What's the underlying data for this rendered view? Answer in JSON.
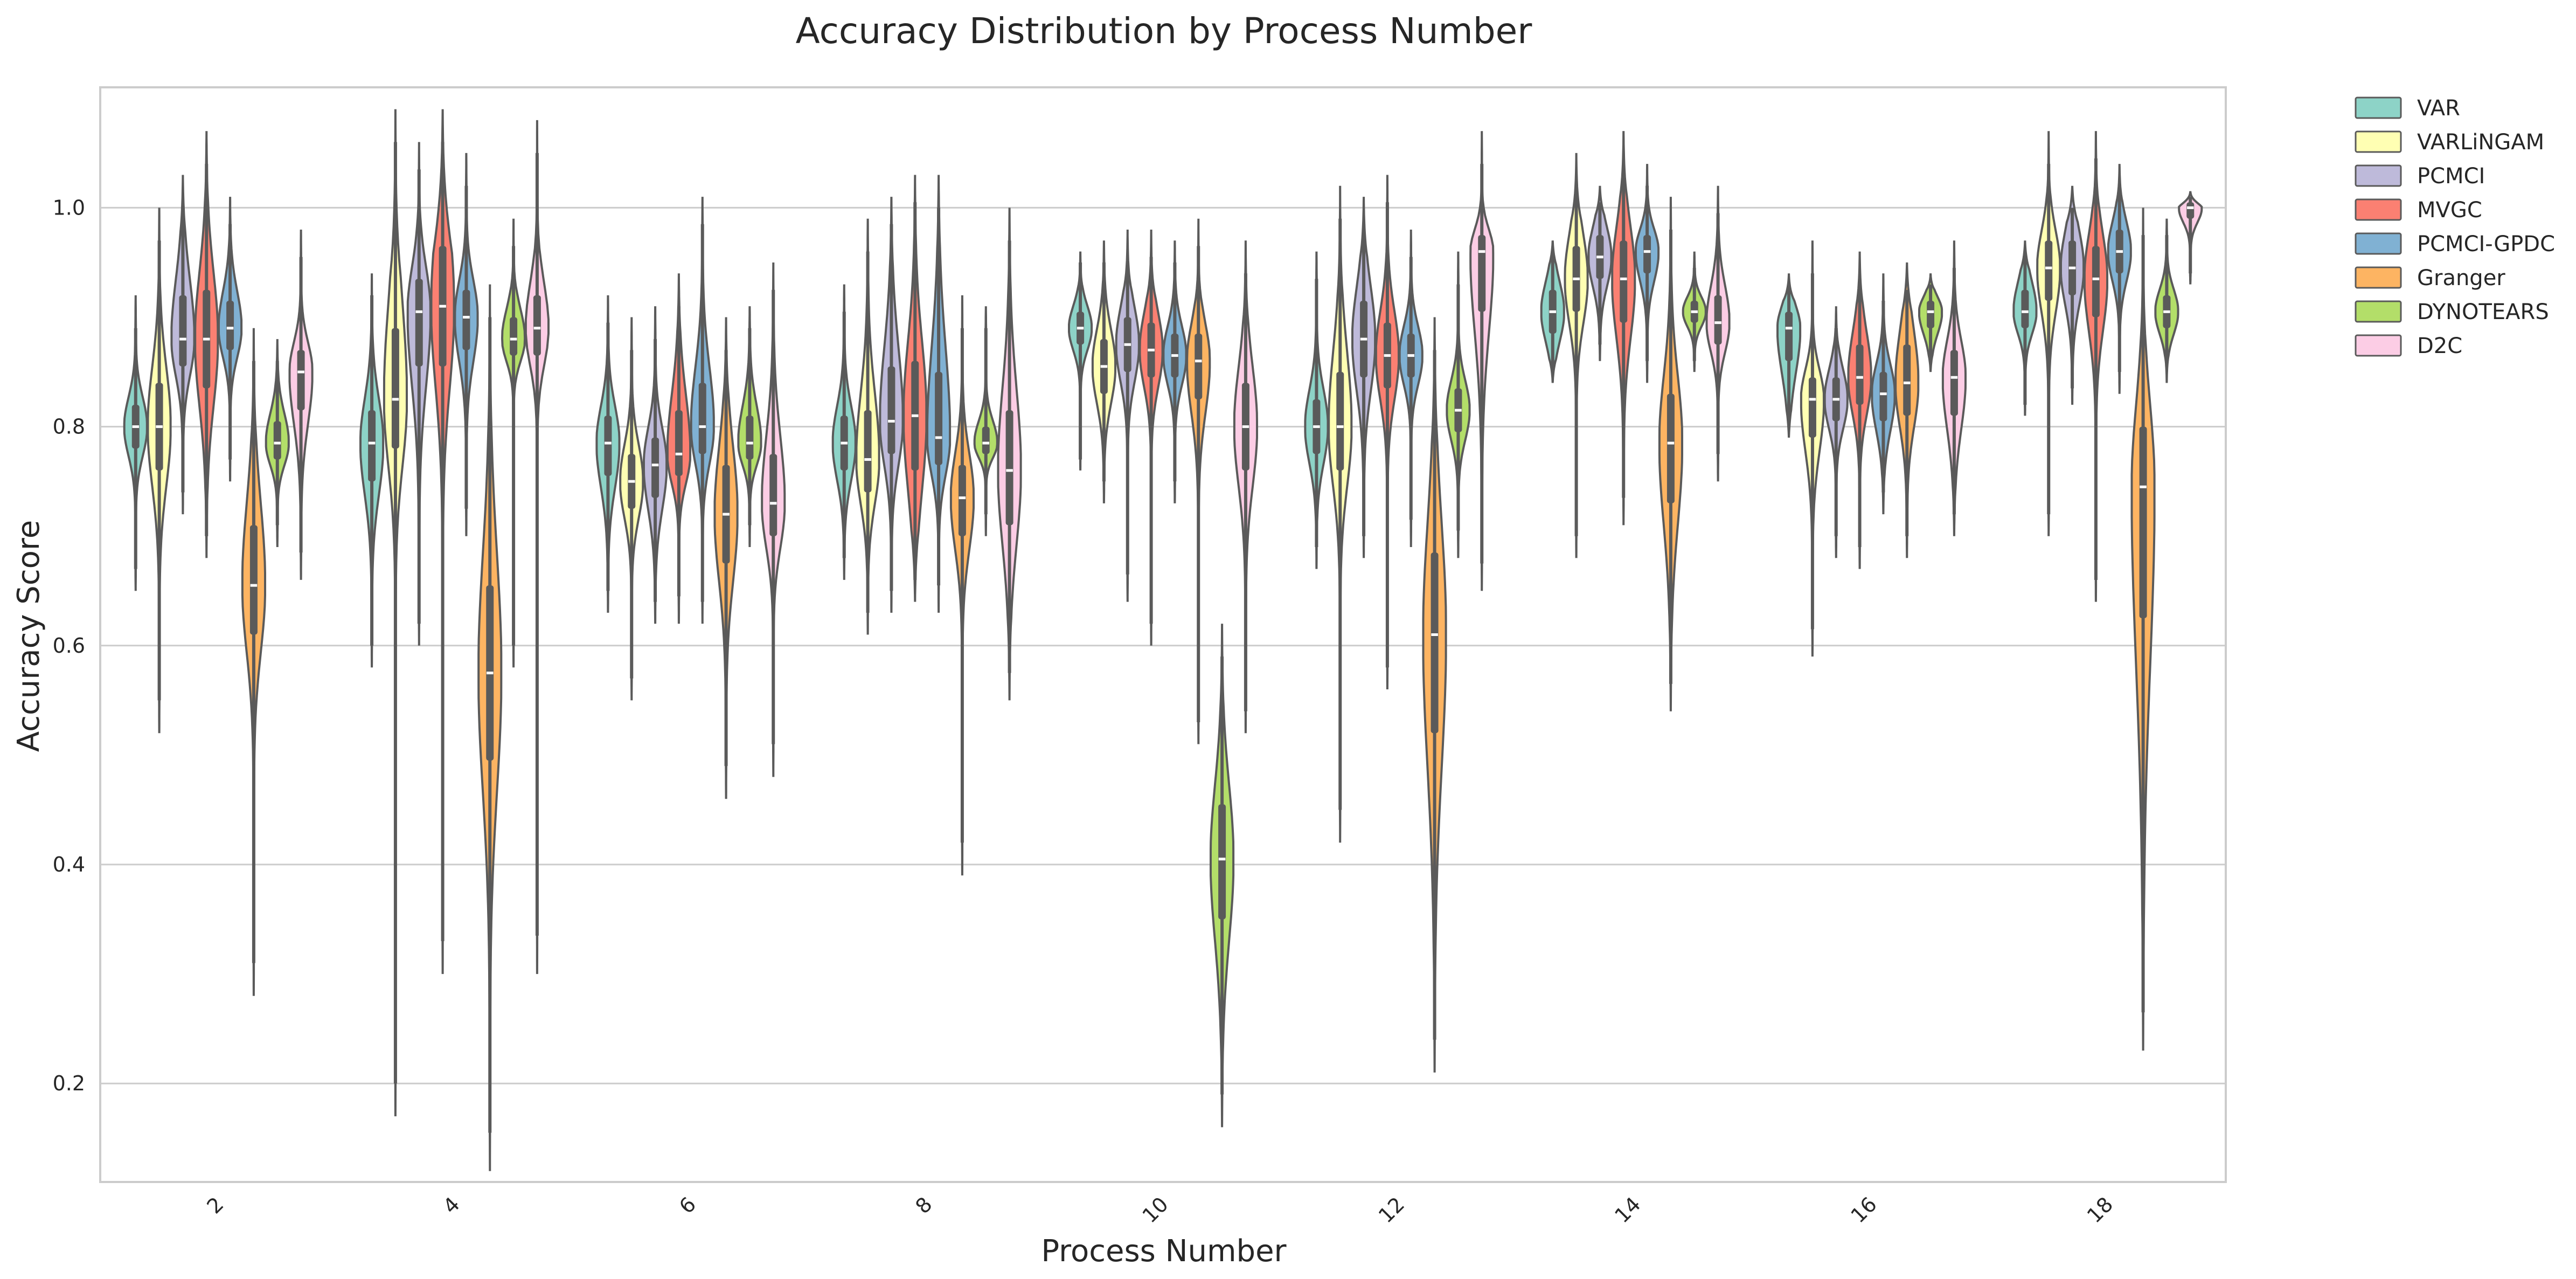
{
  "chart_data": {
    "type": "violin",
    "title": "Accuracy Distribution by Process Number",
    "xlabel": "Process Number",
    "ylabel": "Accuracy Score",
    "ylim": [
      0.11,
      1.11
    ],
    "yticks": [
      0.2,
      0.4,
      0.6,
      0.8,
      1.0
    ],
    "ytick_labels": [
      "0.2",
      "0.4",
      "0.6",
      "0.8",
      "1.0"
    ],
    "grid": "horizontal",
    "legend_position": "outside right, top",
    "categories": [
      "2",
      "4",
      "6",
      "8",
      "10",
      "12",
      "14",
      "16",
      "18"
    ],
    "series": [
      {
        "name": "VAR",
        "color": "#8dd3c7",
        "values": [
          {
            "min": 0.67,
            "q1": 0.78,
            "median": 0.8,
            "q3": 0.82,
            "max": 0.89,
            "lo": 0.65,
            "hi": 0.92
          },
          {
            "min": 0.6,
            "q1": 0.75,
            "median": 0.785,
            "q3": 0.815,
            "max": 0.92,
            "lo": 0.58,
            "hi": 0.94
          },
          {
            "min": 0.65,
            "q1": 0.755,
            "median": 0.785,
            "q3": 0.81,
            "max": 0.895,
            "lo": 0.63,
            "hi": 0.92
          },
          {
            "min": 0.68,
            "q1": 0.76,
            "median": 0.785,
            "q3": 0.81,
            "max": 0.905,
            "lo": 0.66,
            "hi": 0.93
          },
          {
            "min": 0.77,
            "q1": 0.875,
            "median": 0.89,
            "q3": 0.905,
            "max": 0.95,
            "lo": 0.76,
            "hi": 0.96
          },
          {
            "min": 0.69,
            "q1": 0.775,
            "median": 0.8,
            "q3": 0.825,
            "max": 0.935,
            "lo": 0.67,
            "hi": 0.96
          },
          {
            "min": 0.85,
            "q1": 0.885,
            "median": 0.905,
            "q3": 0.925,
            "max": 0.96,
            "lo": 0.84,
            "hi": 0.97
          },
          {
            "min": 0.8,
            "q1": 0.86,
            "median": 0.89,
            "q3": 0.905,
            "max": 0.93,
            "lo": 0.79,
            "hi": 0.94
          },
          {
            "min": 0.82,
            "q1": 0.89,
            "median": 0.905,
            "q3": 0.925,
            "max": 0.96,
            "lo": 0.81,
            "hi": 0.97
          }
        ]
      },
      {
        "name": "VARLiNGAM",
        "color": "#ffffb3",
        "values": [
          {
            "min": 0.55,
            "q1": 0.76,
            "median": 0.8,
            "q3": 0.84,
            "max": 0.97,
            "lo": 0.52,
            "hi": 1.0
          },
          {
            "min": 0.2,
            "q1": 0.78,
            "median": 0.825,
            "q3": 0.89,
            "max": 1.06,
            "lo": 0.17,
            "hi": 1.09
          },
          {
            "min": 0.57,
            "q1": 0.725,
            "median": 0.75,
            "q3": 0.775,
            "max": 0.87,
            "lo": 0.55,
            "hi": 0.9
          },
          {
            "min": 0.63,
            "q1": 0.74,
            "median": 0.77,
            "q3": 0.815,
            "max": 0.96,
            "lo": 0.61,
            "hi": 0.99
          },
          {
            "min": 0.75,
            "q1": 0.83,
            "median": 0.855,
            "q3": 0.88,
            "max": 0.95,
            "lo": 0.73,
            "hi": 0.97
          },
          {
            "min": 0.45,
            "q1": 0.76,
            "median": 0.8,
            "q3": 0.85,
            "max": 0.99,
            "lo": 0.42,
            "hi": 1.02
          },
          {
            "min": 0.7,
            "q1": 0.905,
            "median": 0.935,
            "q3": 0.965,
            "max": 1.02,
            "lo": 0.68,
            "hi": 1.05
          },
          {
            "min": 0.615,
            "q1": 0.79,
            "median": 0.825,
            "q3": 0.845,
            "max": 0.94,
            "lo": 0.59,
            "hi": 0.97
          },
          {
            "min": 0.72,
            "q1": 0.915,
            "median": 0.945,
            "q3": 0.97,
            "max": 1.04,
            "lo": 0.7,
            "hi": 1.07
          }
        ]
      },
      {
        "name": "PCMCI",
        "color": "#bebada",
        "values": [
          {
            "min": 0.74,
            "q1": 0.855,
            "median": 0.88,
            "q3": 0.92,
            "max": 1.0,
            "lo": 0.72,
            "hi": 1.03
          },
          {
            "min": 0.62,
            "q1": 0.855,
            "median": 0.905,
            "q3": 0.935,
            "max": 1.035,
            "lo": 0.6,
            "hi": 1.06
          },
          {
            "min": 0.64,
            "q1": 0.735,
            "median": 0.765,
            "q3": 0.79,
            "max": 0.88,
            "lo": 0.62,
            "hi": 0.91
          },
          {
            "min": 0.65,
            "q1": 0.775,
            "median": 0.805,
            "q3": 0.855,
            "max": 0.985,
            "lo": 0.63,
            "hi": 1.01
          },
          {
            "min": 0.665,
            "q1": 0.85,
            "median": 0.875,
            "q3": 0.9,
            "max": 0.95,
            "lo": 0.64,
            "hi": 0.98
          },
          {
            "min": 0.7,
            "q1": 0.845,
            "median": 0.88,
            "q3": 0.915,
            "max": 0.985,
            "lo": 0.68,
            "hi": 1.01
          },
          {
            "min": 0.875,
            "q1": 0.935,
            "median": 0.955,
            "q3": 0.975,
            "max": 1.005,
            "lo": 0.86,
            "hi": 1.02
          },
          {
            "min": 0.7,
            "q1": 0.805,
            "median": 0.825,
            "q3": 0.845,
            "max": 0.89,
            "lo": 0.68,
            "hi": 0.91
          },
          {
            "min": 0.835,
            "q1": 0.92,
            "median": 0.945,
            "q3": 0.97,
            "max": 1.0,
            "lo": 0.82,
            "hi": 1.02
          }
        ]
      },
      {
        "name": "MVGC",
        "color": "#fb8072",
        "values": [
          {
            "min": 0.7,
            "q1": 0.835,
            "median": 0.88,
            "q3": 0.925,
            "max": 1.04,
            "lo": 0.68,
            "hi": 1.07
          },
          {
            "min": 0.33,
            "q1": 0.855,
            "median": 0.91,
            "q3": 0.965,
            "max": 1.06,
            "lo": 0.3,
            "hi": 1.09
          },
          {
            "min": 0.645,
            "q1": 0.755,
            "median": 0.775,
            "q3": 0.815,
            "max": 0.91,
            "lo": 0.62,
            "hi": 0.94
          },
          {
            "min": 0.66,
            "q1": 0.76,
            "median": 0.81,
            "q3": 0.86,
            "max": 1.005,
            "lo": 0.64,
            "hi": 1.03
          },
          {
            "min": 0.62,
            "q1": 0.845,
            "median": 0.87,
            "q3": 0.895,
            "max": 0.955,
            "lo": 0.6,
            "hi": 0.98
          },
          {
            "min": 0.58,
            "q1": 0.835,
            "median": 0.865,
            "q3": 0.895,
            "max": 1.005,
            "lo": 0.56,
            "hi": 1.03
          },
          {
            "min": 0.735,
            "q1": 0.895,
            "median": 0.935,
            "q3": 0.97,
            "max": 1.04,
            "lo": 0.71,
            "hi": 1.07
          },
          {
            "min": 0.69,
            "q1": 0.82,
            "median": 0.845,
            "q3": 0.875,
            "max": 0.935,
            "lo": 0.67,
            "hi": 0.96
          },
          {
            "min": 0.66,
            "q1": 0.9,
            "median": 0.935,
            "q3": 0.965,
            "max": 1.045,
            "lo": 0.64,
            "hi": 1.07
          }
        ]
      },
      {
        "name": "PCMCI-GPDC",
        "color": "#80b1d3",
        "values": [
          {
            "min": 0.77,
            "q1": 0.87,
            "median": 0.89,
            "q3": 0.915,
            "max": 0.985,
            "lo": 0.75,
            "hi": 1.01
          },
          {
            "min": 0.725,
            "q1": 0.87,
            "median": 0.9,
            "q3": 0.925,
            "max": 1.02,
            "lo": 0.7,
            "hi": 1.05
          },
          {
            "min": 0.64,
            "q1": 0.775,
            "median": 0.8,
            "q3": 0.84,
            "max": 0.985,
            "lo": 0.62,
            "hi": 1.01
          },
          {
            "min": 0.655,
            "q1": 0.765,
            "median": 0.79,
            "q3": 0.85,
            "max": 1.0,
            "lo": 0.63,
            "hi": 1.03
          },
          {
            "min": 0.75,
            "q1": 0.845,
            "median": 0.865,
            "q3": 0.885,
            "max": 0.95,
            "lo": 0.73,
            "hi": 0.97
          },
          {
            "min": 0.715,
            "q1": 0.845,
            "median": 0.865,
            "q3": 0.885,
            "max": 0.955,
            "lo": 0.69,
            "hi": 0.98
          },
          {
            "min": 0.86,
            "q1": 0.94,
            "median": 0.96,
            "q3": 0.975,
            "max": 1.02,
            "lo": 0.84,
            "hi": 1.04
          },
          {
            "min": 0.74,
            "q1": 0.805,
            "median": 0.83,
            "q3": 0.85,
            "max": 0.915,
            "lo": 0.72,
            "hi": 0.94
          },
          {
            "min": 0.85,
            "q1": 0.94,
            "median": 0.96,
            "q3": 0.98,
            "max": 1.02,
            "lo": 0.83,
            "hi": 1.04
          }
        ]
      },
      {
        "name": "Granger",
        "color": "#fdb462",
        "values": [
          {
            "min": 0.31,
            "q1": 0.61,
            "median": 0.655,
            "q3": 0.71,
            "max": 0.86,
            "lo": 0.28,
            "hi": 0.89
          },
          {
            "min": 0.155,
            "q1": 0.495,
            "median": 0.575,
            "q3": 0.655,
            "max": 0.9,
            "lo": 0.12,
            "hi": 0.93
          },
          {
            "min": 0.49,
            "q1": 0.675,
            "median": 0.72,
            "q3": 0.765,
            "max": 0.87,
            "lo": 0.46,
            "hi": 0.9
          },
          {
            "min": 0.42,
            "q1": 0.7,
            "median": 0.735,
            "q3": 0.765,
            "max": 0.89,
            "lo": 0.39,
            "hi": 0.92
          },
          {
            "min": 0.53,
            "q1": 0.825,
            "median": 0.86,
            "q3": 0.885,
            "max": 0.965,
            "lo": 0.51,
            "hi": 0.99
          },
          {
            "min": 0.24,
            "q1": 0.52,
            "median": 0.61,
            "q3": 0.685,
            "max": 0.87,
            "lo": 0.21,
            "hi": 0.9
          },
          {
            "min": 0.565,
            "q1": 0.73,
            "median": 0.785,
            "q3": 0.83,
            "max": 0.98,
            "lo": 0.54,
            "hi": 1.01
          },
          {
            "min": 0.7,
            "q1": 0.81,
            "median": 0.84,
            "q3": 0.875,
            "max": 0.925,
            "lo": 0.68,
            "hi": 0.95
          },
          {
            "min": 0.265,
            "q1": 0.625,
            "median": 0.745,
            "q3": 0.8,
            "max": 0.975,
            "lo": 0.23,
            "hi": 1.0
          }
        ]
      },
      {
        "name": "DYNOTEARS",
        "color": "#b3de69",
        "values": [
          {
            "min": 0.71,
            "q1": 0.77,
            "median": 0.785,
            "q3": 0.805,
            "max": 0.86,
            "lo": 0.69,
            "hi": 0.88
          },
          {
            "min": 0.6,
            "q1": 0.865,
            "median": 0.88,
            "q3": 0.9,
            "max": 0.965,
            "lo": 0.58,
            "hi": 0.99
          },
          {
            "min": 0.71,
            "q1": 0.77,
            "median": 0.785,
            "q3": 0.81,
            "max": 0.89,
            "lo": 0.69,
            "hi": 0.91
          },
          {
            "min": 0.72,
            "q1": 0.775,
            "median": 0.785,
            "q3": 0.8,
            "max": 0.89,
            "lo": 0.7,
            "hi": 0.91
          },
          {
            "min": 0.19,
            "q1": 0.35,
            "median": 0.405,
            "q3": 0.455,
            "max": 0.59,
            "lo": 0.16,
            "hi": 0.62
          },
          {
            "min": 0.705,
            "q1": 0.795,
            "median": 0.815,
            "q3": 0.835,
            "max": 0.93,
            "lo": 0.68,
            "hi": 0.96
          },
          {
            "min": 0.86,
            "q1": 0.895,
            "median": 0.905,
            "q3": 0.915,
            "max": 0.945,
            "lo": 0.85,
            "hi": 0.96
          },
          {
            "min": 0.86,
            "q1": 0.89,
            "median": 0.905,
            "q3": 0.915,
            "max": 0.93,
            "lo": 0.85,
            "hi": 0.94
          },
          {
            "min": 0.855,
            "q1": 0.89,
            "median": 0.905,
            "q3": 0.92,
            "max": 0.975,
            "lo": 0.84,
            "hi": 0.99
          }
        ]
      },
      {
        "name": "D2C",
        "color": "#fccde5",
        "values": [
          {
            "min": 0.685,
            "q1": 0.815,
            "median": 0.85,
            "q3": 0.87,
            "max": 0.955,
            "lo": 0.66,
            "hi": 0.98
          },
          {
            "min": 0.335,
            "q1": 0.865,
            "median": 0.89,
            "q3": 0.92,
            "max": 1.05,
            "lo": 0.3,
            "hi": 1.08
          },
          {
            "min": 0.51,
            "q1": 0.7,
            "median": 0.73,
            "q3": 0.775,
            "max": 0.925,
            "lo": 0.48,
            "hi": 0.95
          },
          {
            "min": 0.575,
            "q1": 0.71,
            "median": 0.76,
            "q3": 0.815,
            "max": 0.97,
            "lo": 0.55,
            "hi": 1.0
          },
          {
            "min": 0.54,
            "q1": 0.76,
            "median": 0.8,
            "q3": 0.84,
            "max": 0.94,
            "lo": 0.52,
            "hi": 0.97
          },
          {
            "min": 0.675,
            "q1": 0.905,
            "median": 0.96,
            "q3": 0.975,
            "max": 1.04,
            "lo": 0.65,
            "hi": 1.07
          },
          {
            "min": 0.775,
            "q1": 0.875,
            "median": 0.895,
            "q3": 0.92,
            "max": 0.995,
            "lo": 0.75,
            "hi": 1.02
          },
          {
            "min": 0.72,
            "q1": 0.81,
            "median": 0.845,
            "q3": 0.87,
            "max": 0.945,
            "lo": 0.7,
            "hi": 0.97
          },
          {
            "min": 0.94,
            "q1": 0.99,
            "median": 1.0,
            "q3": 1.005,
            "max": 1.01,
            "lo": 0.93,
            "hi": 1.015
          }
        ]
      }
    ]
  }
}
